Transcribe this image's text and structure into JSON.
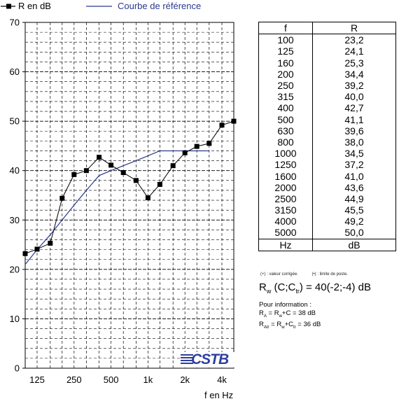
{
  "chart_data": {
    "type": "line",
    "legend": {
      "measured_label": "R en dB",
      "reference_label": "Courbe de référence",
      "placement": "top"
    },
    "x_frequencies": [
      100,
      125,
      160,
      200,
      250,
      315,
      400,
      500,
      630,
      800,
      1000,
      1250,
      1600,
      2000,
      2500,
      3150,
      4000,
      5000
    ],
    "x_tick_labels": [
      "125",
      "250",
      "500",
      "1k",
      "2k",
      "4k"
    ],
    "x_tick_frequencies": [
      125,
      250,
      500,
      1000,
      2000,
      4000
    ],
    "xlabel": "f en Hz",
    "y_ticks": [
      0,
      10,
      20,
      30,
      40,
      50,
      60,
      70
    ],
    "ylim": [
      0,
      70
    ],
    "grid": true,
    "series": [
      {
        "name": "R en dB",
        "color": "#000000",
        "marker": "square",
        "values": [
          23.2,
          24.1,
          25.3,
          34.4,
          39.2,
          40.0,
          42.7,
          41.1,
          39.6,
          38.0,
          34.5,
          37.2,
          41.0,
          43.6,
          44.9,
          45.5,
          49.2,
          50.0
        ]
      },
      {
        "name": "Courbe de référence",
        "color": "#2b3a8f",
        "points": [
          [
            100,
            21
          ],
          [
            125,
            24
          ],
          [
            160,
            27
          ],
          [
            200,
            30
          ],
          [
            250,
            33
          ],
          [
            315,
            36
          ],
          [
            400,
            39
          ],
          [
            500,
            40
          ],
          [
            630,
            41
          ],
          [
            800,
            42
          ],
          [
            1000,
            43
          ],
          [
            1250,
            44
          ],
          [
            1600,
            44
          ],
          [
            2000,
            44
          ],
          [
            2500,
            44
          ],
          [
            3150,
            44
          ]
        ]
      }
    ],
    "logo": "CSTB"
  },
  "table": {
    "header_f": "f",
    "header_r": "R",
    "rows": [
      {
        "f": "100",
        "r": "23,2"
      },
      {
        "f": "125",
        "r": "24,1"
      },
      {
        "f": "160",
        "r": "25,3"
      },
      {
        "f": "200",
        "r": "34,4"
      },
      {
        "f": "250",
        "r": "39,2"
      },
      {
        "f": "315",
        "r": "40,0"
      },
      {
        "f": "400",
        "r": "42,7"
      },
      {
        "f": "500",
        "r": "41,1"
      },
      {
        "f": "630",
        "r": "39,6"
      },
      {
        "f": "800",
        "r": "38,0"
      },
      {
        "f": "1000",
        "r": "34,5"
      },
      {
        "f": "1250",
        "r": "37,2"
      },
      {
        "f": "1600",
        "r": "41,0"
      },
      {
        "f": "2000",
        "r": "43,6"
      },
      {
        "f": "2500",
        "r": "44,9"
      },
      {
        "f": "3150",
        "r": "45,5"
      },
      {
        "f": "4000",
        "r": "49,2"
      },
      {
        "f": "5000",
        "r": "50,0"
      }
    ],
    "footer_f": "Hz",
    "footer_r": "dB"
  },
  "notes": {
    "corrected": "(+) : valeur corrigée.",
    "limit": "(•) : limite de poste."
  },
  "rw": {
    "prefix": "R",
    "prefix_sub": "w",
    "mid1": " (C;C",
    "mid1_sub": "tr",
    "mid2": ") = 40(-2;-4) dB"
  },
  "info": {
    "title": "Pour information :",
    "line1_a": "R",
    "line1_a_sub": "A",
    "line1_b": " = R",
    "line1_b_sub": "w",
    "line1_c": "+C = 38 dB",
    "line2_a": "R",
    "line2_a_sub": "Atr",
    "line2_b": " = R",
    "line2_b_sub": "w",
    "line2_c": "+C",
    "line2_c_sub": "tr",
    "line2_d": " = 36 dB"
  }
}
